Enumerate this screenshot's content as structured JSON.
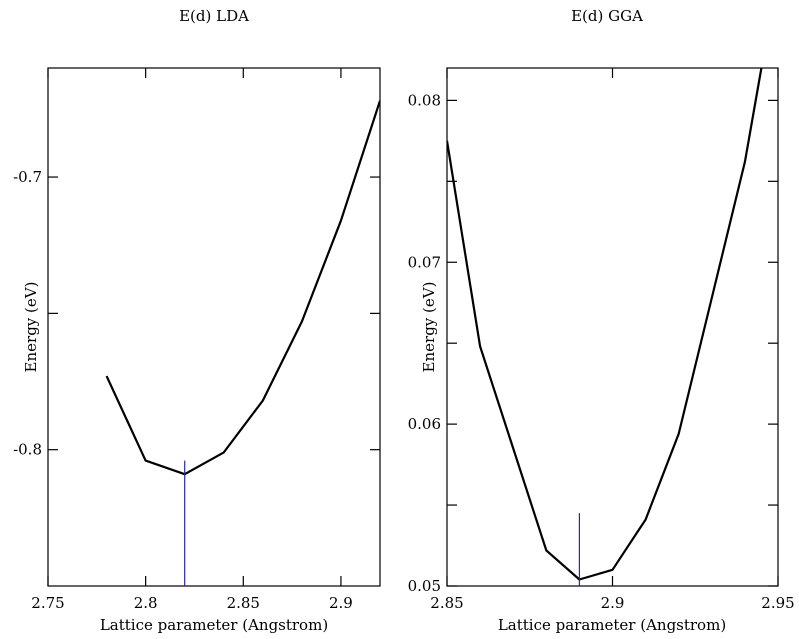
{
  "chart_data": [
    {
      "type": "line",
      "title": "E(d) LDA",
      "xlabel": "Lattice parameter (Angstrom)",
      "ylabel": "Energy (eV)",
      "xlim": [
        2.75,
        2.92
      ],
      "ylim": [
        -0.85,
        -0.66
      ],
      "xticks": [
        2.75,
        2.8,
        2.85,
        2.9
      ],
      "xtick_labels": [
        "2.75",
        "2.8",
        "2.85",
        "2.9"
      ],
      "yticks": [
        -0.8,
        -0.75,
        -0.7
      ],
      "ytick_labels": [
        "-0.8",
        "",
        "-0.7"
      ],
      "series": [
        {
          "x": [
            2.78,
            2.8,
            2.82,
            2.84,
            2.86,
            2.88,
            2.9,
            2.92
          ],
          "y": [
            -0.773,
            -0.804,
            -0.809,
            -0.801,
            -0.782,
            -0.753,
            -0.716,
            -0.672
          ],
          "color": "#000000"
        }
      ],
      "marker_line": {
        "x": 2.82,
        "y_top": -0.804,
        "color": "#2a2aa0"
      }
    },
    {
      "type": "line",
      "title": "E(d) GGA",
      "xlabel": "Lattice parameter (Angstrom)",
      "ylabel": "Energy (eV)",
      "xlim": [
        2.85,
        2.95
      ],
      "ylim": [
        0.05,
        0.082
      ],
      "xticks": [
        2.85,
        2.9,
        2.95
      ],
      "xtick_labels": [
        "2.85",
        "2.9",
        "2.95"
      ],
      "yticks": [
        0.05,
        0.055,
        0.06,
        0.065,
        0.07,
        0.075,
        0.08
      ],
      "ytick_labels": [
        "0.05",
        "",
        "0.06",
        "",
        "0.07",
        "",
        "0.08"
      ],
      "series": [
        {
          "x": [
            2.85,
            2.86,
            2.87,
            2.88,
            2.89,
            2.9,
            2.91,
            2.92,
            2.93,
            2.94,
            2.945
          ],
          "y": [
            0.0775,
            0.0648,
            0.0585,
            0.0522,
            0.0504,
            0.051,
            0.0541,
            0.0594,
            0.0678,
            0.0762,
            0.082
          ],
          "color": "#000000"
        }
      ],
      "marker_line": {
        "x": 2.89,
        "y_top": 0.0545,
        "color": "#2a2aa0"
      }
    }
  ]
}
